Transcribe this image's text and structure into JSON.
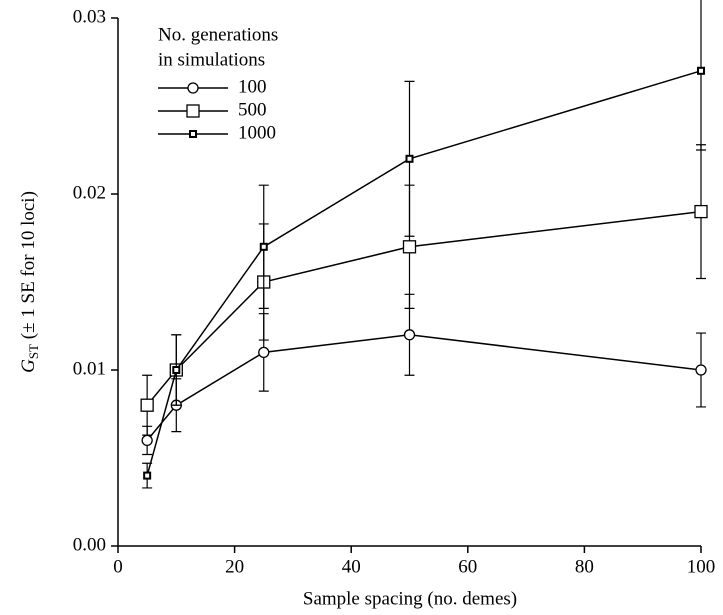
{
  "chart_data": {
    "type": "line",
    "xlabel": "Sample spacing (no. demes)",
    "ylabel": {
      "main": "G",
      "sub": "ST",
      "rest": " (± 1 SE for 10 loci)"
    },
    "legend_title": [
      "No. generations",
      "in simulations"
    ],
    "legend": "upper left",
    "x": [
      5,
      10,
      25,
      50,
      100
    ],
    "xlim": [
      0,
      100
    ],
    "xticks": [
      0,
      20,
      40,
      60,
      80,
      100
    ],
    "ylim": [
      0,
      0.03
    ],
    "yticks": [
      {
        "value": 0,
        "label": "0.00"
      },
      {
        "value": 0.01,
        "label": "0.01"
      },
      {
        "value": 0.02,
        "label": "0.02"
      },
      {
        "value": 0.03,
        "label": "0.03"
      }
    ],
    "series": [
      {
        "name": "100",
        "color": "#000000",
        "marker": "circle",
        "values": [
          0.006,
          0.008,
          0.011,
          0.012,
          0.01
        ],
        "errors": [
          0.0008,
          0.0015,
          0.0022,
          0.0023,
          0.0021
        ]
      },
      {
        "name": "500",
        "color": "#000000",
        "marker": "square",
        "values": [
          0.008,
          0.01,
          0.015,
          0.017,
          0.019
        ],
        "errors": [
          0.0017,
          0.002,
          0.0033,
          0.0035,
          0.0038
        ]
      },
      {
        "name": "1000",
        "color": "#000000",
        "marker": "small-square",
        "values": [
          0.004,
          0.01,
          0.017,
          0.022,
          0.027
        ],
        "errors": [
          0.0007,
          0.002,
          0.0035,
          0.0044,
          0.0045
        ]
      }
    ]
  }
}
